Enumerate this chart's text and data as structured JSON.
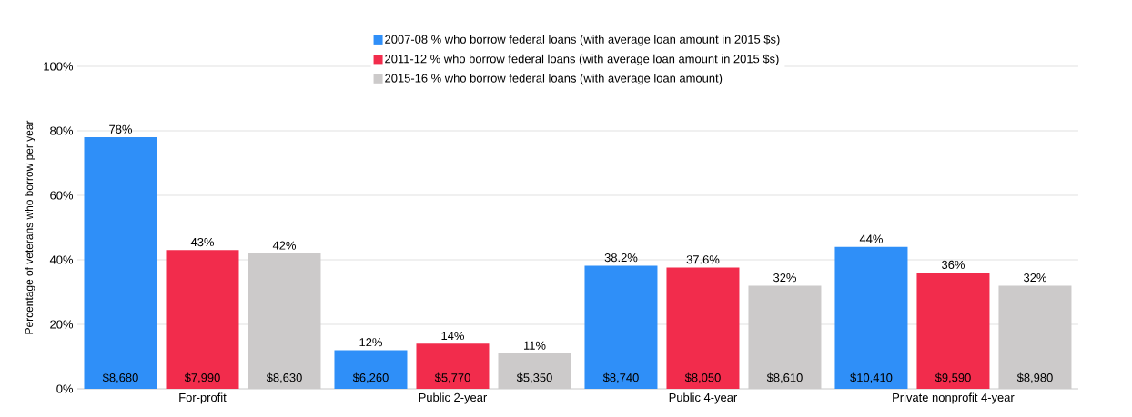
{
  "chart_data": {
    "type": "bar",
    "ylabel": "Percentage of veterans who borrow per year",
    "categories": [
      "For-profit",
      "Public 2-year",
      "Public 4-year",
      "Private nonprofit 4-year"
    ],
    "series": [
      {
        "name": "2007-08 % who borrow federal loans (with average loan amount in 2015 $s)",
        "color": "#2f8ff8",
        "values": [
          78,
          12,
          38.2,
          44
        ],
        "value_labels": [
          "78%",
          "12%",
          "38.2%",
          "44%"
        ]
      },
      {
        "name": "2011-12 % who borrow federal loans (with average loan amount in 2015 $s)",
        "color": "#f22c4c",
        "values": [
          43,
          14,
          37.6,
          36
        ],
        "value_labels": [
          "43%",
          "14%",
          "37.6%",
          "36%"
        ]
      },
      {
        "name": "2015-16 % who borrow federal loans (with average loan amount)",
        "color": "#cccaca",
        "values": [
          42,
          11,
          32,
          32
        ],
        "value_labels": [
          "42%",
          "11%",
          "32%",
          "32%"
        ]
      }
    ],
    "ylim": [
      0,
      100
    ],
    "yticks": [
      {
        "value": 0,
        "label": "0%"
      },
      {
        "value": 20,
        "label": "20%"
      },
      {
        "value": 40,
        "label": "40%"
      },
      {
        "value": 60,
        "label": "60%"
      },
      {
        "value": 80,
        "label": "80%"
      },
      {
        "value": 100,
        "label": "100%"
      }
    ],
    "grid": "y",
    "legend": "top",
    "annotations": [
      "$8,680",
      "$7,990",
      "$8,630",
      "$6,260",
      "$5,770",
      "$5,350",
      "$8,740",
      "$8,050",
      "$8,610",
      "$10,410",
      "$9,590",
      "$8,980"
    ]
  }
}
